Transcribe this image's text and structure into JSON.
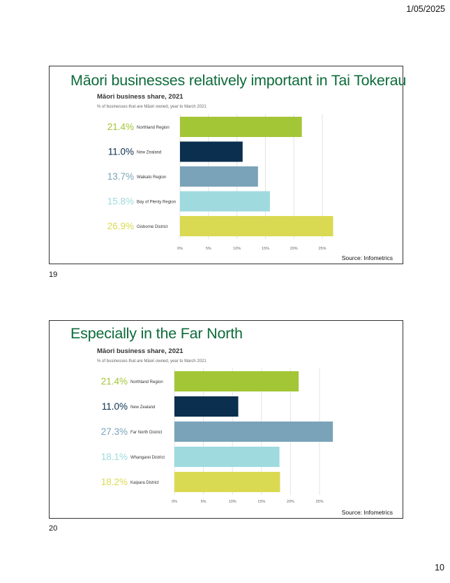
{
  "header": {
    "date": "1/05/2025"
  },
  "page": {
    "number": "10"
  },
  "slides": [
    {
      "number": "19",
      "title": "Māori businesses relatively important in Tai Tokerau",
      "source": "Source: Infometrics"
    },
    {
      "number": "20",
      "title": "Especially in the Far North",
      "source": "Source: Infometrics"
    }
  ],
  "chart_data": [
    {
      "type": "bar",
      "orientation": "horizontal",
      "title": "Māori business share, 2021",
      "subtitle": "% of businesses that are Māori owned, year to March 2021",
      "categories": [
        "Northland Region",
        "New Zealand",
        "Waikato Region",
        "Bay of Plenty Region",
        "Gisborne District"
      ],
      "values": [
        21.4,
        11.0,
        13.7,
        15.8,
        26.9
      ],
      "value_labels": [
        "21.4%",
        "11.0%",
        "13.7%",
        "15.8%",
        "26.9%"
      ],
      "colors": [
        "#a3c637",
        "#0b2f4e",
        "#7aa3b9",
        "#9fdadf",
        "#dada52"
      ],
      "xlim": [
        0,
        25
      ],
      "xticks": [
        "0%",
        "5%",
        "10%",
        "15%",
        "20%",
        "25%"
      ],
      "grid": true
    },
    {
      "type": "bar",
      "orientation": "horizontal",
      "title": "Māori business share, 2021",
      "subtitle": "% of businesses that are Māori owned, year to March 2021",
      "categories": [
        "Northland Region",
        "New Zealand",
        "Far North District",
        "Whangarei District",
        "Kaipara District"
      ],
      "values": [
        21.4,
        11.0,
        27.3,
        18.1,
        18.2
      ],
      "value_labels": [
        "21.4%",
        "11.0%",
        "27.3%",
        "18.1%",
        "18.2%"
      ],
      "colors": [
        "#a3c637",
        "#0b2f4e",
        "#7aa3b9",
        "#9fdadf",
        "#dada52"
      ],
      "xlim": [
        0,
        25
      ],
      "xticks": [
        "0%",
        "5%",
        "10%",
        "15%",
        "20%",
        "25%"
      ],
      "grid": true
    }
  ]
}
